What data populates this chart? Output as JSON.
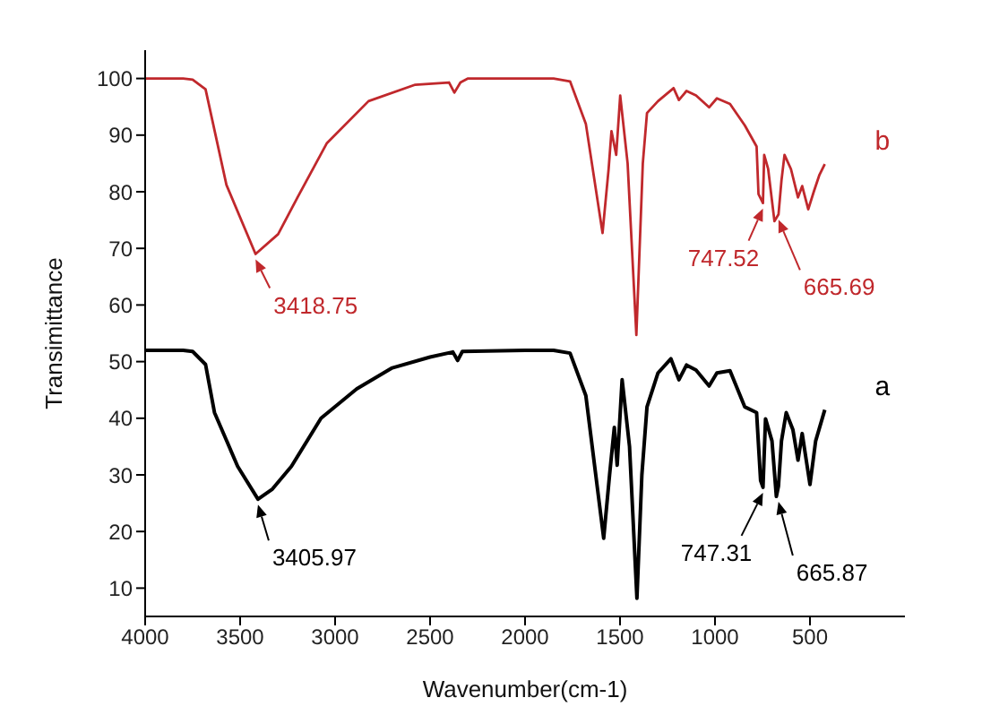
{
  "chart_data": {
    "type": "line",
    "xlabel": "Wavenumber(cm-1)",
    "ylabel": "Transimittance",
    "xlim": [
      4000,
      0
    ],
    "xticks": [
      4000,
      3500,
      3000,
      2500,
      2000,
      1500,
      1000,
      500
    ],
    "ylim": [
      5,
      105
    ],
    "yticks": [
      10,
      20,
      30,
      40,
      50,
      60,
      70,
      80,
      90,
      100
    ],
    "grid": false,
    "legend": false,
    "marker": "none",
    "line_style": "solid",
    "series": [
      {
        "name": "b",
        "color": "#c0282c",
        "x": [
          4000,
          3800,
          3750,
          3682,
          3572,
          3418.75,
          3300,
          3198,
          3043,
          2824,
          2578,
          2400,
          2372,
          2340,
          2300,
          2000,
          1850,
          1763,
          1680,
          1592,
          1560,
          1545,
          1520,
          1499,
          1460,
          1414,
          1380,
          1358,
          1300,
          1218,
          1190,
          1150,
          1100,
          1031,
          990,
          921,
          843,
          781,
          771,
          747.52,
          741,
          720,
          687,
          665.69,
          650,
          634,
          600,
          563,
          541,
          509,
          480,
          450,
          422
        ],
        "values": [
          100,
          100,
          99.8,
          98.1,
          81.2,
          69,
          72.5,
          79,
          88.6,
          96,
          98.9,
          99.3,
          97.5,
          99.3,
          100,
          100,
          100,
          99.5,
          92,
          72.7,
          84,
          90.7,
          86.5,
          97,
          85,
          54.7,
          85,
          93.9,
          96,
          98.3,
          96.2,
          97.8,
          97,
          94.9,
          96.5,
          95.5,
          91.7,
          88,
          79.6,
          78,
          86.5,
          84,
          74.8,
          76,
          82,
          86.5,
          84,
          79,
          81,
          76.9,
          80,
          83,
          84.9
        ]
      },
      {
        "name": "a",
        "color": "#000000",
        "x": [
          4000,
          3800,
          3750,
          3682,
          3635,
          3513,
          3405.97,
          3330,
          3230,
          3074,
          2886,
          2699,
          2500,
          2380,
          2355,
          2330,
          2000,
          1850,
          1763,
          1680,
          1586,
          1555,
          1530,
          1515,
          1489,
          1450,
          1411,
          1385,
          1358,
          1300,
          1232,
          1190,
          1150,
          1100,
          1031,
          990,
          921,
          843,
          781,
          760,
          747.31,
          734,
          700,
          677,
          665.87,
          650,
          625,
          590,
          563,
          541,
          500,
          470,
          422
        ],
        "values": [
          52,
          52,
          51.8,
          49.5,
          41,
          31.5,
          25.7,
          27.5,
          31.5,
          40,
          45.2,
          48.9,
          50.8,
          51.7,
          50.2,
          51.8,
          52,
          52,
          51.5,
          44,
          18.8,
          30,
          38.4,
          31.7,
          46.8,
          35,
          8.2,
          30,
          42,
          48,
          50.5,
          46.8,
          49.4,
          48.5,
          45.7,
          48,
          48.4,
          42,
          41,
          29,
          27.8,
          39.9,
          36,
          26.2,
          28,
          36,
          41,
          38,
          32.6,
          37.3,
          28.3,
          36,
          41.5
        ]
      }
    ],
    "annotations": [
      {
        "text": "3418.75",
        "x": 3418.75,
        "y": 69
      },
      {
        "text": "747.52",
        "x": 747.52,
        "y": 78
      },
      {
        "text": "665.69",
        "x": 665.69,
        "y": 76
      },
      {
        "text": "3405.97",
        "x": 3405.97,
        "y": 25.7
      },
      {
        "text": "747.31",
        "x": 747.31,
        "y": 27.8
      },
      {
        "text": "665.87",
        "x": 665.87,
        "y": 26.2
      }
    ]
  }
}
